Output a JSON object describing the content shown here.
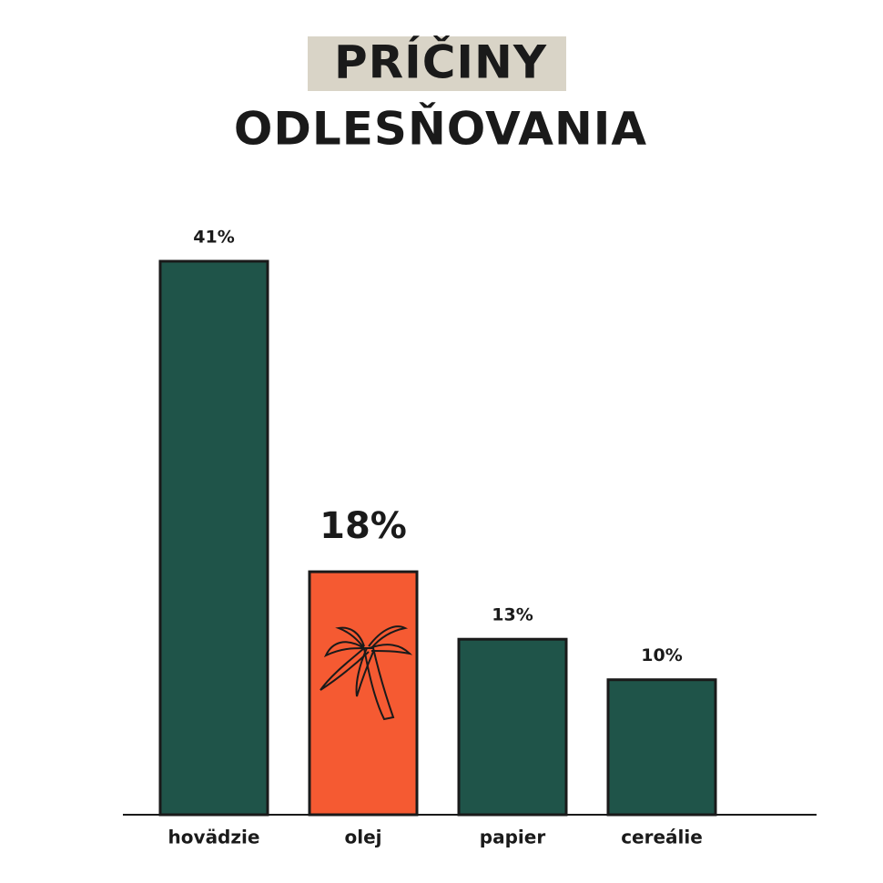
{
  "chart_data": {
    "type": "bar",
    "title": [
      "PRÍČINY",
      "ODLESŇOVANIA"
    ],
    "categories": [
      "hovädzie",
      "olej",
      "papier",
      "cereálie"
    ],
    "values": [
      41,
      18,
      13,
      10
    ],
    "value_labels": [
      "41%",
      "18%",
      "13%",
      "10%"
    ],
    "colors": [
      "#1f5449",
      "#f55a32",
      "#1f5449",
      "#1f5449"
    ],
    "highlight": 1
  }
}
